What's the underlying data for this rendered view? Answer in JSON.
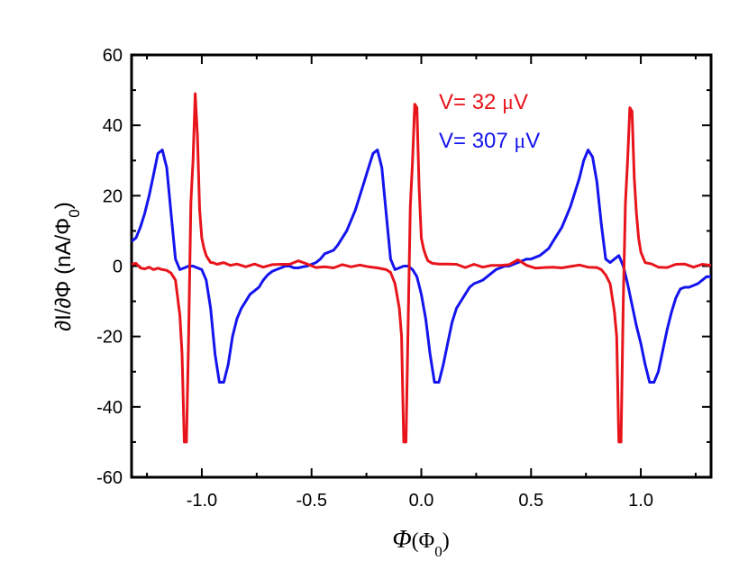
{
  "chart_data": {
    "type": "line",
    "title": "",
    "xlabel": {
      "symbol": "Φ",
      "unit_open": "(",
      "unit_symbol": "Φ",
      "unit_sub": "0",
      "unit_close": ")"
    },
    "ylabel": {
      "prefix": "∂I/∂Φ (nA/Φ",
      "sub": "0",
      "suffix": ")"
    },
    "xlim": [
      -1.32,
      1.32
    ],
    "ylim": [
      -60,
      60
    ],
    "xticks": [
      -1.0,
      -0.5,
      0.0,
      0.5,
      1.0
    ],
    "xtick_labels": [
      "-1.0",
      "-0.5",
      "0.0",
      "0.5",
      "1.0"
    ],
    "yticks": [
      -60,
      -40,
      -20,
      0,
      20,
      40,
      60
    ],
    "ytick_labels": [
      "-60",
      "-40",
      "-20",
      "0",
      "20",
      "40",
      "60"
    ],
    "grid": false,
    "legend_position": "top-right",
    "series": [
      {
        "name": "V= 32 μV",
        "color": "#e8141b",
        "x": [
          -1.32,
          -1.3,
          -1.28,
          -1.26,
          -1.24,
          -1.22,
          -1.2,
          -1.18,
          -1.16,
          -1.14,
          -1.12,
          -1.1,
          -1.09,
          -1.08,
          -1.07,
          -1.06,
          -1.05,
          -1.04,
          -1.03,
          -1.02,
          -1.01,
          -1.0,
          -0.99,
          -0.98,
          -0.97,
          -0.96,
          -0.95,
          -0.93,
          -0.9,
          -0.87,
          -0.84,
          -0.8,
          -0.76,
          -0.72,
          -0.68,
          -0.64,
          -0.6,
          -0.56,
          -0.52,
          -0.48,
          -0.44,
          -0.4,
          -0.36,
          -0.32,
          -0.28,
          -0.24,
          -0.2,
          -0.16,
          -0.14,
          -0.12,
          -0.1,
          -0.09,
          -0.08,
          -0.07,
          -0.06,
          -0.05,
          -0.04,
          -0.03,
          -0.02,
          -0.01,
          0.0,
          0.01,
          0.02,
          0.03,
          0.05,
          0.08,
          0.12,
          0.16,
          0.2,
          0.24,
          0.28,
          0.32,
          0.36,
          0.4,
          0.44,
          0.48,
          0.52,
          0.56,
          0.6,
          0.64,
          0.68,
          0.72,
          0.76,
          0.8,
          0.82,
          0.84,
          0.86,
          0.87,
          0.88,
          0.89,
          0.9,
          0.91,
          0.92,
          0.93,
          0.94,
          0.95,
          0.96,
          0.97,
          0.98,
          0.99,
          1.0,
          1.02,
          1.05,
          1.08,
          1.12,
          1.16,
          1.2,
          1.24,
          1.28,
          1.32
        ],
        "y": [
          0.5,
          0.8,
          -0.5,
          -0.8,
          -0.3,
          -1.0,
          -0.6,
          -1.0,
          -1.2,
          -2.0,
          -4.0,
          -14.0,
          -25.0,
          -50.0,
          -50.0,
          -20.0,
          18.0,
          30.0,
          49.0,
          37.0,
          16.0,
          8.0,
          5.0,
          3.0,
          2.0,
          1.0,
          1.0,
          0.5,
          1.0,
          0.2,
          0.6,
          -0.2,
          0.6,
          -0.3,
          0.4,
          0.5,
          0.5,
          1.5,
          0.6,
          -0.4,
          -0.2,
          -0.5,
          0.4,
          -0.2,
          0.3,
          -0.2,
          -0.5,
          -1.0,
          -1.8,
          -5.0,
          -12.0,
          -20.0,
          -50.0,
          -50.0,
          -16.0,
          17.0,
          30.0,
          46.0,
          45.0,
          22.0,
          8.0,
          5.0,
          3.0,
          1.5,
          0.8,
          0.6,
          0.6,
          0.5,
          -0.4,
          0.5,
          -0.3,
          0.2,
          0.2,
          0.4,
          1.8,
          0.2,
          -0.6,
          -0.4,
          -0.3,
          -0.5,
          -0.1,
          0.3,
          -0.3,
          -0.4,
          -1.0,
          -2.5,
          -5.0,
          -9.0,
          -13.0,
          -20.0,
          -50.0,
          -50.0,
          -10.0,
          18.0,
          30.0,
          45.0,
          44.0,
          25.0,
          15.0,
          8.0,
          4.0,
          1.0,
          0.6,
          -0.3,
          -0.4,
          0.5,
          0.6,
          -0.3,
          0.5,
          0.2
        ]
      },
      {
        "name": "V= 307 μV",
        "color": "#1414ee",
        "x": [
          -1.32,
          -1.3,
          -1.28,
          -1.26,
          -1.24,
          -1.22,
          -1.2,
          -1.18,
          -1.16,
          -1.14,
          -1.12,
          -1.1,
          -1.08,
          -1.06,
          -1.04,
          -1.02,
          -1.0,
          -0.98,
          -0.96,
          -0.94,
          -0.92,
          -0.9,
          -0.88,
          -0.86,
          -0.84,
          -0.82,
          -0.8,
          -0.78,
          -0.76,
          -0.74,
          -0.72,
          -0.7,
          -0.68,
          -0.66,
          -0.64,
          -0.62,
          -0.6,
          -0.58,
          -0.56,
          -0.54,
          -0.52,
          -0.5,
          -0.48,
          -0.46,
          -0.44,
          -0.42,
          -0.4,
          -0.38,
          -0.36,
          -0.34,
          -0.32,
          -0.3,
          -0.28,
          -0.26,
          -0.24,
          -0.22,
          -0.2,
          -0.18,
          -0.16,
          -0.14,
          -0.12,
          -0.1,
          -0.08,
          -0.06,
          -0.04,
          -0.02,
          0.0,
          0.02,
          0.04,
          0.06,
          0.08,
          0.1,
          0.12,
          0.14,
          0.16,
          0.18,
          0.2,
          0.22,
          0.24,
          0.26,
          0.28,
          0.3,
          0.32,
          0.34,
          0.36,
          0.38,
          0.4,
          0.42,
          0.44,
          0.46,
          0.48,
          0.5,
          0.52,
          0.54,
          0.56,
          0.58,
          0.6,
          0.62,
          0.64,
          0.66,
          0.68,
          0.7,
          0.72,
          0.74,
          0.76,
          0.78,
          0.8,
          0.82,
          0.84,
          0.86,
          0.88,
          0.9,
          0.92,
          0.94,
          0.96,
          0.98,
          1.0,
          1.02,
          1.04,
          1.06,
          1.08,
          1.1,
          1.12,
          1.14,
          1.16,
          1.18,
          1.2,
          1.22,
          1.24,
          1.26,
          1.28,
          1.3,
          1.32
        ],
        "y": [
          7.0,
          8.0,
          11.0,
          15.0,
          20.0,
          26.0,
          32.0,
          33.0,
          28.0,
          15.0,
          2.0,
          -1.0,
          -0.5,
          0.0,
          0.0,
          -0.5,
          -1.0,
          -4.0,
          -12.0,
          -25.0,
          -33.0,
          -33.0,
          -28.0,
          -20.0,
          -15.0,
          -12.0,
          -10.0,
          -8.0,
          -7.0,
          -6.0,
          -4.0,
          -2.5,
          -1.5,
          -1.0,
          -0.5,
          0.0,
          0.0,
          -0.5,
          -0.5,
          -0.2,
          0.0,
          0.5,
          1.0,
          2.0,
          3.5,
          4.0,
          4.5,
          6.0,
          8.0,
          10.0,
          13.0,
          16.0,
          20.0,
          24.0,
          28.0,
          32.0,
          33.0,
          28.0,
          15.0,
          2.0,
          -1.0,
          -0.5,
          0.0,
          0.0,
          -1.0,
          -3.0,
          -8.0,
          -15.0,
          -25.0,
          -33.0,
          -33.0,
          -28.0,
          -22.0,
          -16.0,
          -12.0,
          -10.0,
          -8.0,
          -6.0,
          -5.0,
          -4.5,
          -4.0,
          -3.0,
          -2.0,
          -1.0,
          -0.5,
          0.0,
          0.0,
          0.5,
          1.0,
          1.5,
          2.0,
          2.0,
          2.5,
          3.0,
          4.0,
          5.0,
          7.0,
          9.0,
          11.0,
          14.0,
          17.0,
          21.0,
          25.0,
          30.0,
          33.0,
          31.0,
          24.0,
          12.0,
          2.0,
          1.0,
          2.0,
          3.0,
          0.0,
          -5.0,
          -11.0,
          -17.0,
          -22.0,
          -28.0,
          -33.0,
          -33.0,
          -30.0,
          -24.0,
          -18.0,
          -13.0,
          -9.0,
          -6.5,
          -6.0,
          -6.0,
          -5.5,
          -5.0,
          -4.0,
          -3.0,
          -3.0
        ]
      }
    ],
    "legend": [
      {
        "label": "V= 32 ",
        "mu": "μ",
        "unit": "V",
        "color": "#e8141b"
      },
      {
        "label": "V= 307 ",
        "mu": "μ",
        "unit": "V",
        "color": "#1414ee"
      }
    ]
  }
}
